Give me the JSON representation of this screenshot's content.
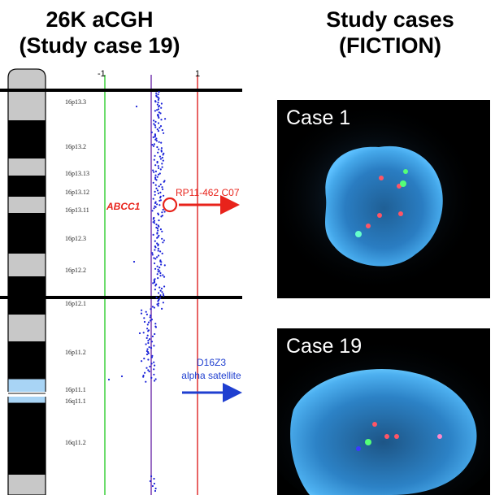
{
  "headings": {
    "left": [
      "26K aCGH",
      "(Study case 19)"
    ],
    "right": [
      "Study cases",
      "(FICTION)"
    ]
  },
  "plot": {
    "axis_ticks": [
      "-1",
      "1"
    ],
    "bands": [
      "16p13.3",
      "16p13.2",
      "16p13.13",
      "16p13.12",
      "16p13.11",
      "16p12.3",
      "16p12.2",
      "16p12.1",
      "16p11.2",
      "16p11.1",
      "16q11.1",
      "16q11.2"
    ]
  },
  "annotations": {
    "gene": "ABCC1",
    "probe_red": "RP11-462 C07",
    "probe_blue_line1": "D16Z3",
    "probe_blue_line2": "alpha satellite"
  },
  "panels": [
    {
      "label": "Case 1"
    },
    {
      "label": "Case 19"
    }
  ],
  "colors": {
    "gene_red": "#e8231b",
    "probe_blue": "#1f3fd0",
    "dapi_blue": "#3fa4e6",
    "guide_green": "#3bd13b",
    "guide_red": "#e03030",
    "guide_purple": "#7a3fb0",
    "dot_blue": "#1a22d8"
  }
}
